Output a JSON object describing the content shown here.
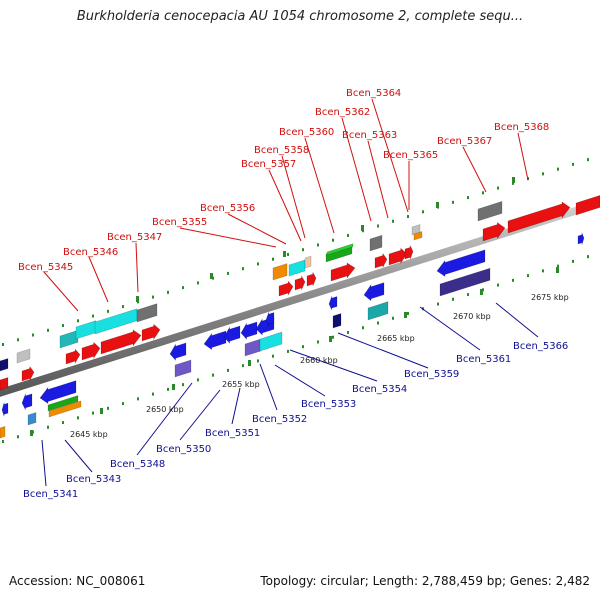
{
  "title": "Burkholderia cenocepacia AU 1054 chromosome 2, complete sequ...",
  "footer": {
    "accession": "Accession: NC_008061",
    "summary": "Topology: circular; Length: 2,788,459 bp; Genes: 2,482"
  },
  "colors": {
    "label_top": "#d01010",
    "label_bottom": "#101090",
    "backbone": "#8a8a8a",
    "tick_mark": "#2a8a2a"
  },
  "ticks": [
    "2645 kbp",
    "2650 kbp",
    "2655 kbp",
    "2660 kbp",
    "2665 kbp",
    "2670 kbp",
    "2675 kbp"
  ],
  "labels_top": [
    "Bcen_5345",
    "Bcen_5346",
    "Bcen_5347",
    "Bcen_5355",
    "Bcen_5356",
    "Bcen_5357",
    "Bcen_5358",
    "Bcen_5360",
    "Bcen_5362",
    "Bcen_5364",
    "Bcen_5363",
    "Bcen_5365",
    "Bcen_5367",
    "Bcen_5368"
  ],
  "labels_bottom": [
    "Bcen_5341",
    "Bcen_5343",
    "Bcen_5348",
    "Bcen_5350",
    "Bcen_5351",
    "Bcen_5352",
    "Bcen_5353",
    "Bcen_5354",
    "Bcen_5359",
    "Bcen_5361",
    "Bcen_5366"
  ]
}
